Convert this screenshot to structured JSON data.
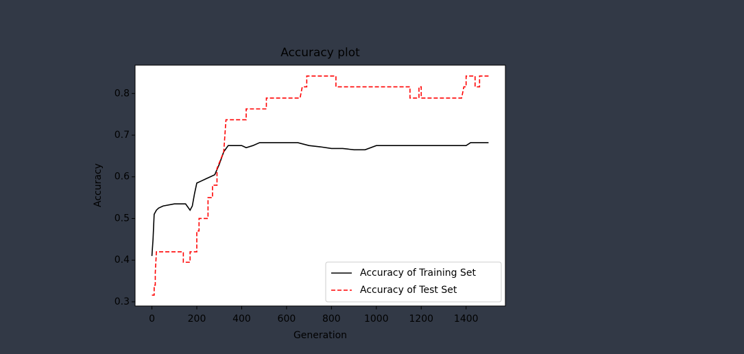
{
  "chart_data": {
    "type": "line",
    "title": "Accuracy plot",
    "xlabel": "Generation",
    "ylabel": "Accuracy",
    "xlim": [
      -75,
      1575
    ],
    "ylim": [
      0.29,
      0.868
    ],
    "xticks": [
      0,
      200,
      400,
      600,
      800,
      1000,
      1200,
      1400
    ],
    "yticks": [
      0.3,
      0.4,
      0.5,
      0.6,
      0.7,
      0.8
    ],
    "legend": "lower right",
    "series": [
      {
        "name": "Accuracy of Training Set",
        "color": "#000000",
        "dash": "solid",
        "x": [
          0,
          5,
          10,
          20,
          30,
          50,
          100,
          150,
          170,
          180,
          190,
          200,
          220,
          240,
          260,
          280,
          300,
          320,
          340,
          400,
          420,
          450,
          480,
          650,
          700,
          750,
          800,
          850,
          900,
          950,
          1000,
          1400,
          1420,
          1500
        ],
        "values": [
          0.41,
          0.45,
          0.51,
          0.52,
          0.525,
          0.53,
          0.535,
          0.535,
          0.52,
          0.53,
          0.56,
          0.585,
          0.59,
          0.595,
          0.6,
          0.605,
          0.63,
          0.66,
          0.675,
          0.675,
          0.67,
          0.675,
          0.682,
          0.682,
          0.675,
          0.672,
          0.668,
          0.668,
          0.665,
          0.665,
          0.675,
          0.675,
          0.682,
          0.682
        ]
      },
      {
        "name": "Accuracy of Test Set",
        "color": "#ff0000",
        "dash": "dashed",
        "x": [
          0,
          10,
          10,
          15,
          15,
          20,
          140,
          140,
          170,
          170,
          200,
          200,
          210,
          210,
          250,
          250,
          270,
          270,
          290,
          290,
          320,
          330,
          420,
          420,
          510,
          510,
          660,
          670,
          690,
          690,
          820,
          820,
          1150,
          1150,
          1190,
          1190,
          1200,
          1200,
          1380,
          1390,
          1400,
          1400,
          1440,
          1440,
          1460,
          1460,
          1470,
          1470,
          1500
        ],
        "values": [
          0.316,
          0.316,
          0.34,
          0.34,
          0.37,
          0.42,
          0.42,
          0.395,
          0.395,
          0.42,
          0.42,
          0.47,
          0.47,
          0.5,
          0.5,
          0.55,
          0.55,
          0.58,
          0.58,
          0.62,
          0.66,
          0.737,
          0.737,
          0.763,
          0.763,
          0.789,
          0.789,
          0.816,
          0.816,
          0.842,
          0.842,
          0.816,
          0.816,
          0.789,
          0.789,
          0.816,
          0.816,
          0.789,
          0.789,
          0.816,
          0.816,
          0.842,
          0.842,
          0.816,
          0.816,
          0.842,
          0.842,
          0.842,
          0.842
        ]
      }
    ]
  }
}
